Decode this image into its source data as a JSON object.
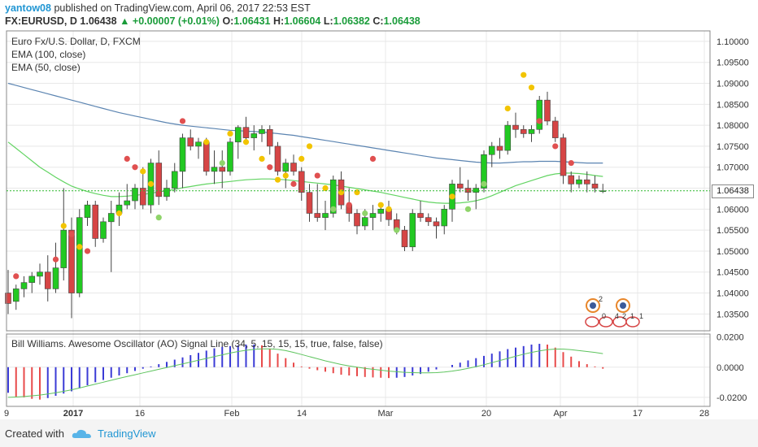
{
  "header": {
    "user": "yantow08",
    "published_text": "published on TradingView.com, April 06, 2017 22:53 EST",
    "symbol": "FX:EURUSD, D",
    "last": "1.06438",
    "arrow": "▲",
    "change": "+0.00007 (+0.01%)",
    "open_label": "O:",
    "open": "1.06431",
    "high_label": "H:",
    "high": "1.06604",
    "low_label": "L:",
    "low": "1.06382",
    "close_label": "C:",
    "close": "1.06438"
  },
  "legend": {
    "title": "Euro Fx/U.S. Dollar, D, FXCM",
    "ema100": "EMA (100, close)",
    "ema50": "EMA (50, close)"
  },
  "indicator": {
    "title": "Bill Williams. Awesome Oscillator (AO) Signal Line (34, 5, 15, 15, 15, true, false, false)"
  },
  "price_tag": "1.06438",
  "footer": {
    "created": "Created with",
    "brand": "TradingView"
  },
  "colors": {
    "up": "#22c922",
    "down": "#d64545",
    "ema100": "#5b84b1",
    "ema50": "#63d463",
    "ao_up": "#3b3bd6",
    "ao_down": "#e84a4a",
    "dot_red": "#e05050",
    "dot_yellow": "#f2c400",
    "dot_green": "#8fd46a",
    "grid": "#e8e8e8"
  },
  "chart_data": {
    "type": "candlestick",
    "price_axis": {
      "ticks": [
        "1.10000",
        "1.09500",
        "1.09000",
        "1.08500",
        "1.08000",
        "1.07500",
        "1.07000",
        "1.06500",
        "1.06000",
        "1.05500",
        "1.05000",
        "1.04500",
        "1.04000",
        "1.03500"
      ],
      "range": [
        1.031,
        1.1025
      ]
    },
    "ao_axis": {
      "ticks": [
        "0.0200",
        "0.0000",
        "-0.0200"
      ],
      "range": [
        -0.026,
        0.022
      ]
    },
    "time_axis_labels": [
      "9",
      "2017",
      "16",
      "Feb",
      "14",
      "Mar",
      "20",
      "Apr",
      "17",
      "28"
    ],
    "ohlc": [
      [
        1.04,
        1.0455,
        1.035,
        1.0375
      ],
      [
        1.038,
        1.042,
        1.036,
        1.041
      ],
      [
        1.041,
        1.044,
        1.039,
        1.0425
      ],
      [
        1.0425,
        1.045,
        1.04,
        1.044
      ],
      [
        1.044,
        1.047,
        1.042,
        1.045
      ],
      [
        1.045,
        1.049,
        1.038,
        1.041
      ],
      [
        1.041,
        1.052,
        1.04,
        1.046
      ],
      [
        1.046,
        1.065,
        1.043,
        1.055
      ],
      [
        1.055,
        1.058,
        1.034,
        1.04
      ],
      [
        1.04,
        1.06,
        1.039,
        1.058
      ],
      [
        1.058,
        1.062,
        1.056,
        1.061
      ],
      [
        1.061,
        1.062,
        1.051,
        1.053
      ],
      [
        1.053,
        1.058,
        1.052,
        1.057
      ],
      [
        1.057,
        1.062,
        1.045,
        1.059
      ],
      [
        1.059,
        1.064,
        1.056,
        1.061
      ],
      [
        1.061,
        1.066,
        1.06,
        1.062
      ],
      [
        1.062,
        1.066,
        1.06,
        1.065
      ],
      [
        1.065,
        1.07,
        1.06,
        1.061
      ],
      [
        1.061,
        1.072,
        1.059,
        1.071
      ],
      [
        1.071,
        1.074,
        1.061,
        1.063
      ],
      [
        1.063,
        1.067,
        1.062,
        1.065
      ],
      [
        1.065,
        1.071,
        1.064,
        1.069
      ],
      [
        1.069,
        1.078,
        1.065,
        1.077
      ],
      [
        1.077,
        1.079,
        1.074,
        1.075
      ],
      [
        1.075,
        1.077,
        1.072,
        1.076
      ],
      [
        1.076,
        1.077,
        1.068,
        1.069
      ],
      [
        1.069,
        1.074,
        1.066,
        1.07
      ],
      [
        1.07,
        1.074,
        1.065,
        1.069
      ],
      [
        1.069,
        1.077,
        1.068,
        1.076
      ],
      [
        1.076,
        1.08,
        1.072,
        1.0795
      ],
      [
        1.0795,
        1.082,
        1.076,
        1.077
      ],
      [
        1.077,
        1.08,
        1.074,
        1.078
      ],
      [
        1.078,
        1.08,
        1.076,
        1.079
      ],
      [
        1.079,
        1.08,
        1.073,
        1.075
      ],
      [
        1.075,
        1.076,
        1.068,
        1.069
      ],
      [
        1.069,
        1.072,
        1.065,
        1.071
      ],
      [
        1.071,
        1.073,
        1.068,
        1.069
      ],
      [
        1.069,
        1.07,
        1.062,
        1.064
      ],
      [
        1.064,
        1.066,
        1.057,
        1.059
      ],
      [
        1.059,
        1.066,
        1.057,
        1.058
      ],
      [
        1.058,
        1.062,
        1.055,
        1.059
      ],
      [
        1.059,
        1.068,
        1.058,
        1.067
      ],
      [
        1.067,
        1.069,
        1.06,
        1.061
      ],
      [
        1.061,
        1.065,
        1.057,
        1.059
      ],
      [
        1.059,
        1.06,
        1.054,
        1.056
      ],
      [
        1.056,
        1.06,
        1.055,
        1.058
      ],
      [
        1.058,
        1.061,
        1.055,
        1.059
      ],
      [
        1.059,
        1.061,
        1.057,
        1.06
      ],
      [
        1.06,
        1.062,
        1.056,
        1.0575
      ],
      [
        1.0575,
        1.059,
        1.054,
        1.055
      ],
      [
        1.055,
        1.056,
        1.05,
        1.051
      ],
      [
        1.051,
        1.06,
        1.05,
        1.059
      ],
      [
        1.059,
        1.062,
        1.057,
        1.058
      ],
      [
        1.058,
        1.059,
        1.056,
        1.057
      ],
      [
        1.057,
        1.058,
        1.053,
        1.056
      ],
      [
        1.056,
        1.061,
        1.054,
        1.06
      ],
      [
        1.06,
        1.067,
        1.057,
        1.066
      ],
      [
        1.066,
        1.07,
        1.064,
        1.065
      ],
      [
        1.065,
        1.067,
        1.062,
        1.064
      ],
      [
        1.064,
        1.066,
        1.06,
        1.065
      ],
      [
        1.065,
        1.074,
        1.064,
        1.073
      ],
      [
        1.073,
        1.076,
        1.07,
        1.075
      ],
      [
        1.075,
        1.077,
        1.072,
        1.074
      ],
      [
        1.074,
        1.081,
        1.073,
        1.08
      ],
      [
        1.08,
        1.083,
        1.077,
        1.079
      ],
      [
        1.079,
        1.08,
        1.077,
        1.078
      ],
      [
        1.078,
        1.08,
        1.076,
        1.079
      ],
      [
        1.079,
        1.087,
        1.078,
        1.086
      ],
      [
        1.086,
        1.088,
        1.08,
        1.081
      ],
      [
        1.081,
        1.082,
        1.076,
        1.077
      ],
      [
        1.077,
        1.078,
        1.066,
        1.068
      ],
      [
        1.068,
        1.069,
        1.064,
        1.066
      ],
      [
        1.066,
        1.068,
        1.065,
        1.067
      ],
      [
        1.067,
        1.069,
        1.064,
        1.066
      ],
      [
        1.066,
        1.068,
        1.064,
        1.065
      ],
      [
        1.06431,
        1.06604,
        1.06382,
        1.06438
      ]
    ],
    "ema100": [
      1.09,
      1.0895,
      1.089,
      1.0885,
      1.088,
      1.0875,
      1.087,
      1.0865,
      1.086,
      1.0855,
      1.085,
      1.0845,
      1.084,
      1.0835,
      1.083,
      1.0826,
      1.0822,
      1.0818,
      1.0814,
      1.081,
      1.0806,
      1.0803,
      1.08,
      1.0798,
      1.0796,
      1.0794,
      1.0792,
      1.079,
      1.0788,
      1.0787,
      1.0786,
      1.0785,
      1.0784,
      1.0782,
      1.078,
      1.0778,
      1.0776,
      1.0773,
      1.077,
      1.0767,
      1.0764,
      1.0761,
      1.0758,
      1.0755,
      1.0752,
      1.0749,
      1.0746,
      1.0743,
      1.074,
      1.0737,
      1.0734,
      1.0731,
      1.0728,
      1.0725,
      1.0722,
      1.072,
      1.0718,
      1.0716,
      1.0714,
      1.0712,
      1.0711,
      1.071,
      1.071,
      1.0711,
      1.0712,
      1.0713,
      1.0713,
      1.0714,
      1.0714,
      1.0714,
      1.0713,
      1.0712,
      1.0711,
      1.071,
      1.071,
      1.071
    ],
    "ema50": [
      1.076,
      1.0745,
      1.073,
      1.0715,
      1.07,
      1.0688,
      1.0676,
      1.0665,
      1.0655,
      1.0648,
      1.0642,
      1.0637,
      1.0633,
      1.063,
      1.063,
      1.0631,
      1.0633,
      1.0635,
      1.0638,
      1.0641,
      1.0644,
      1.0647,
      1.0651,
      1.0654,
      1.0657,
      1.066,
      1.0662,
      1.0664,
      1.0666,
      1.0668,
      1.067,
      1.0671,
      1.0672,
      1.0672,
      1.0671,
      1.067,
      1.0668,
      1.0666,
      1.0664,
      1.0662,
      1.066,
      1.0658,
      1.0655,
      1.0652,
      1.0649,
      1.0646,
      1.0643,
      1.064,
      1.0636,
      1.0632,
      1.0628,
      1.0624,
      1.062,
      1.0617,
      1.0615,
      1.0614,
      1.0614,
      1.0615,
      1.0617,
      1.062,
      1.0625,
      1.0632,
      1.064,
      1.0648,
      1.0656,
      1.0662,
      1.0668,
      1.0674,
      1.068,
      1.0684,
      1.0686,
      1.0686,
      1.0685,
      1.0683,
      1.068,
      1.0678
    ],
    "dots": [
      [
        1,
        1.044,
        "red"
      ],
      [
        6,
        1.048,
        "red"
      ],
      [
        7,
        1.056,
        "yellow"
      ],
      [
        8,
        1.054,
        "red"
      ],
      [
        9,
        1.051,
        "yellow"
      ],
      [
        10,
        1.05,
        "red"
      ],
      [
        14,
        1.059,
        "yellow"
      ],
      [
        15,
        1.072,
        "red"
      ],
      [
        16,
        1.07,
        "red"
      ],
      [
        17,
        1.069,
        "yellow"
      ],
      [
        18,
        1.066,
        "yellow"
      ],
      [
        19,
        1.058,
        "green"
      ],
      [
        22,
        1.081,
        "red"
      ],
      [
        25,
        1.076,
        "yellow"
      ],
      [
        27,
        1.071,
        "green"
      ],
      [
        28,
        1.078,
        "yellow"
      ],
      [
        30,
        1.076,
        "yellow"
      ],
      [
        32,
        1.072,
        "yellow"
      ],
      [
        33,
        1.07,
        "red"
      ],
      [
        34,
        1.067,
        "yellow"
      ],
      [
        35,
        1.068,
        "yellow"
      ],
      [
        36,
        1.066,
        "red"
      ],
      [
        37,
        1.072,
        "yellow"
      ],
      [
        38,
        1.075,
        "yellow"
      ],
      [
        39,
        1.068,
        "red"
      ],
      [
        40,
        1.065,
        "yellow"
      ],
      [
        41,
        1.06,
        "green"
      ],
      [
        42,
        1.064,
        "yellow"
      ],
      [
        43,
        1.061,
        "red"
      ],
      [
        44,
        1.064,
        "yellow"
      ],
      [
        45,
        1.059,
        "green"
      ],
      [
        46,
        1.072,
        "red"
      ],
      [
        47,
        1.061,
        "yellow"
      ],
      [
        48,
        1.06,
        "yellow"
      ],
      [
        49,
        1.055,
        "green"
      ],
      [
        56,
        1.063,
        "yellow"
      ],
      [
        58,
        1.06,
        "green"
      ],
      [
        60,
        1.066,
        "green"
      ],
      [
        63,
        1.084,
        "yellow"
      ],
      [
        65,
        1.092,
        "yellow"
      ],
      [
        66,
        1.089,
        "yellow"
      ],
      [
        67,
        1.081,
        "red"
      ],
      [
        69,
        1.075,
        "red"
      ],
      [
        71,
        1.071,
        "red"
      ]
    ],
    "ao": [
      -0.017,
      -0.0195,
      -0.02,
      -0.021,
      -0.0215,
      -0.0205,
      -0.019,
      -0.0175,
      -0.016,
      -0.014,
      -0.012,
      -0.01,
      -0.0085,
      -0.007,
      -0.0055,
      -0.004,
      -0.0025,
      -0.001,
      0.0005,
      0.002,
      0.0035,
      0.005,
      0.0065,
      0.008,
      0.0095,
      0.011,
      0.0125,
      0.0135,
      0.014,
      0.0145,
      0.015,
      0.015,
      0.0145,
      0.012,
      0.009,
      0.006,
      0.003,
      0.0005,
      -0.001,
      -0.002,
      -0.003,
      -0.004,
      -0.005,
      -0.0055,
      -0.006,
      -0.0065,
      -0.0068,
      -0.007,
      -0.0072,
      -0.007,
      -0.0065,
      -0.0055,
      -0.0045,
      -0.003,
      -0.0015,
      0.0,
      0.0015,
      0.003,
      0.0045,
      0.006,
      0.0075,
      0.009,
      0.0105,
      0.012,
      0.013,
      0.014,
      0.015,
      0.0155,
      0.015,
      0.013,
      0.01,
      0.007,
      0.004,
      0.002,
      0.0005,
      -0.001
    ],
    "ao_signal": [
      -0.02,
      -0.0198,
      -0.0195,
      -0.019,
      -0.0185,
      -0.0178,
      -0.017,
      -0.016,
      -0.015,
      -0.0138,
      -0.0125,
      -0.0112,
      -0.01,
      -0.0087,
      -0.0074,
      -0.0062,
      -0.005,
      -0.0038,
      -0.0026,
      -0.0014,
      -0.0002,
      0.001,
      0.0022,
      0.0034,
      0.0046,
      0.0058,
      0.007,
      0.0082,
      0.0094,
      0.0104,
      0.0112,
      0.0118,
      0.0122,
      0.0122,
      0.0118,
      0.011,
      0.0098,
      0.0084,
      0.007,
      0.0056,
      0.0042,
      0.003,
      0.0018,
      0.0008,
      0.0,
      -0.0008,
      -0.0014,
      -0.002,
      -0.0026,
      -0.003,
      -0.0034,
      -0.0036,
      -0.0038,
      -0.0038,
      -0.0036,
      -0.0032,
      -0.0026,
      -0.0018,
      -0.0008,
      0.0004,
      0.0016,
      0.003,
      0.0044,
      0.0058,
      0.0072,
      0.0086,
      0.0098,
      0.0108,
      0.0116,
      0.012,
      0.012,
      0.0116,
      0.011,
      0.0104,
      0.0098,
      0.009
    ]
  }
}
